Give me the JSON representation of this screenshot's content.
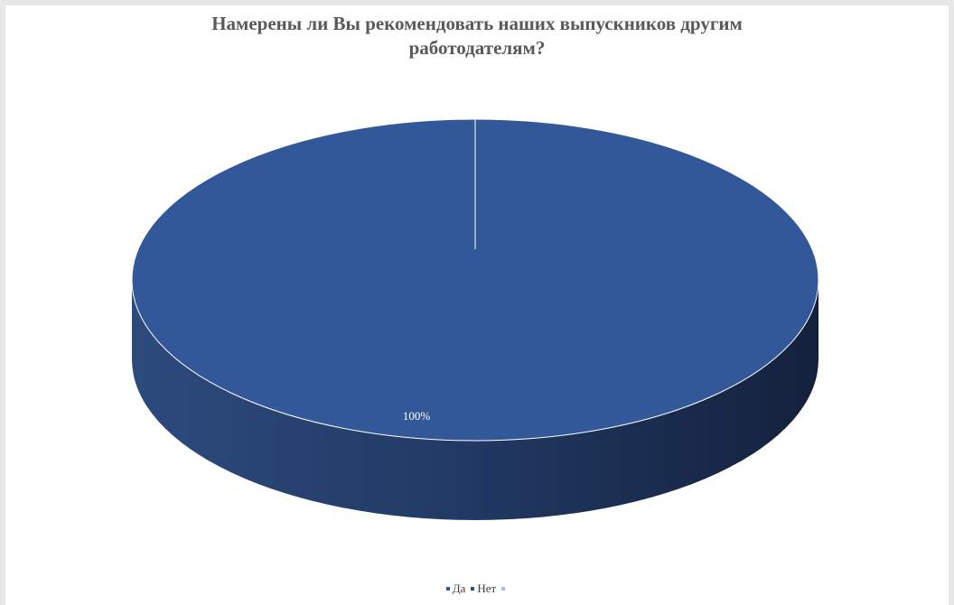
{
  "chart_data": {
    "type": "pie",
    "style": "3d",
    "title_lines": [
      "Намерены ли Вы рекомендовать наших выпускников другим",
      "работодателям?"
    ],
    "categories": [
      "Да",
      "Нет",
      ""
    ],
    "values": [
      100,
      0,
      0
    ],
    "data_labels": [
      "100%"
    ],
    "colors": [
      "#33589a",
      "#2e4f8a",
      "#a9bde0"
    ],
    "legend_position": "bottom"
  }
}
